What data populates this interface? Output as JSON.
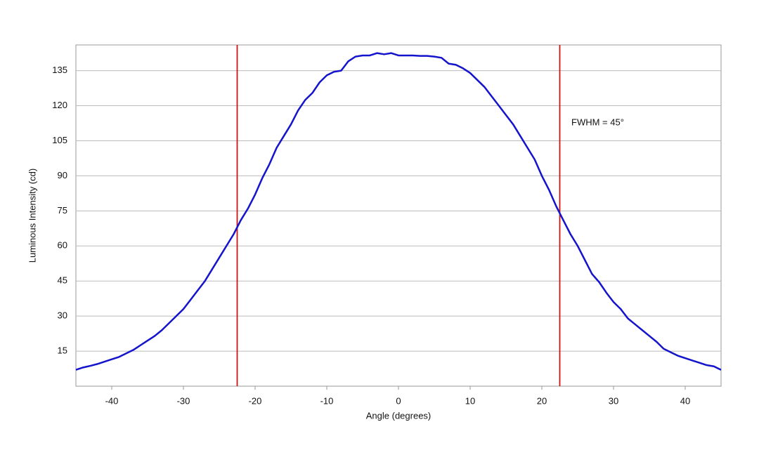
{
  "chart_data": {
    "type": "line",
    "xlabel": "Angle (degrees)",
    "ylabel": "Luminous Intensity (cd)",
    "annotation": "FWHM = 45°",
    "x": [
      -45,
      -44,
      -43,
      -42,
      -41,
      -40,
      -39,
      -38,
      -37,
      -36,
      -35,
      -34,
      -33,
      -32,
      -31,
      -30,
      -29,
      -28,
      -27,
      -26,
      -25,
      -24,
      -23,
      -22,
      -21,
      -20,
      -19,
      -18,
      -17,
      -16,
      -15,
      -14,
      -13,
      -12,
      -11,
      -10,
      -9,
      -8,
      -7,
      -6,
      -5,
      -4,
      -3,
      -2,
      -1,
      0,
      1,
      2,
      3,
      4,
      5,
      6,
      7,
      8,
      9,
      10,
      11,
      12,
      13,
      14,
      15,
      16,
      17,
      18,
      19,
      20,
      21,
      22,
      23,
      24,
      25,
      26,
      27,
      28,
      29,
      30,
      31,
      32,
      33,
      34,
      35,
      36,
      37,
      38,
      39,
      40,
      41,
      42,
      43,
      44,
      45
    ],
    "values": [
      7,
      8,
      8.7,
      9.5,
      10.5,
      11.5,
      12.5,
      14,
      15.5,
      17.5,
      19.5,
      21.5,
      24,
      27,
      30,
      33,
      37,
      41,
      45,
      50,
      55,
      60,
      65,
      71,
      76,
      82,
      89,
      95,
      102,
      107,
      112,
      118,
      122.5,
      125.5,
      130,
      133,
      134.5,
      135,
      139,
      141,
      141.5,
      141.5,
      142.5,
      142,
      142.5,
      141.5,
      141.5,
      141.5,
      141.3,
      141.3,
      141,
      140.5,
      138,
      137.5,
      136,
      134,
      131,
      128,
      124,
      120,
      116,
      112,
      107,
      102,
      97,
      90,
      84,
      77,
      71,
      65,
      60,
      54,
      48,
      44.5,
      40,
      36,
      33,
      29,
      26.5,
      24,
      21.5,
      19,
      16,
      14.5,
      13,
      12,
      11,
      10,
      9,
      8.5,
      7
    ],
    "color": "#1414cc",
    "vlines": [
      {
        "x": -22.5,
        "color": "#cc1414"
      },
      {
        "x": 22.5,
        "color": "#cc1414"
      }
    ],
    "xlim": [
      -45,
      45
    ],
    "xticks": [
      -40,
      -30,
      -20,
      -10,
      0,
      10,
      20,
      30,
      40
    ],
    "ylim": [
      0,
      146
    ],
    "yticks": [
      15,
      30,
      45,
      60,
      75,
      90,
      105,
      120,
      135
    ],
    "grid": true
  }
}
